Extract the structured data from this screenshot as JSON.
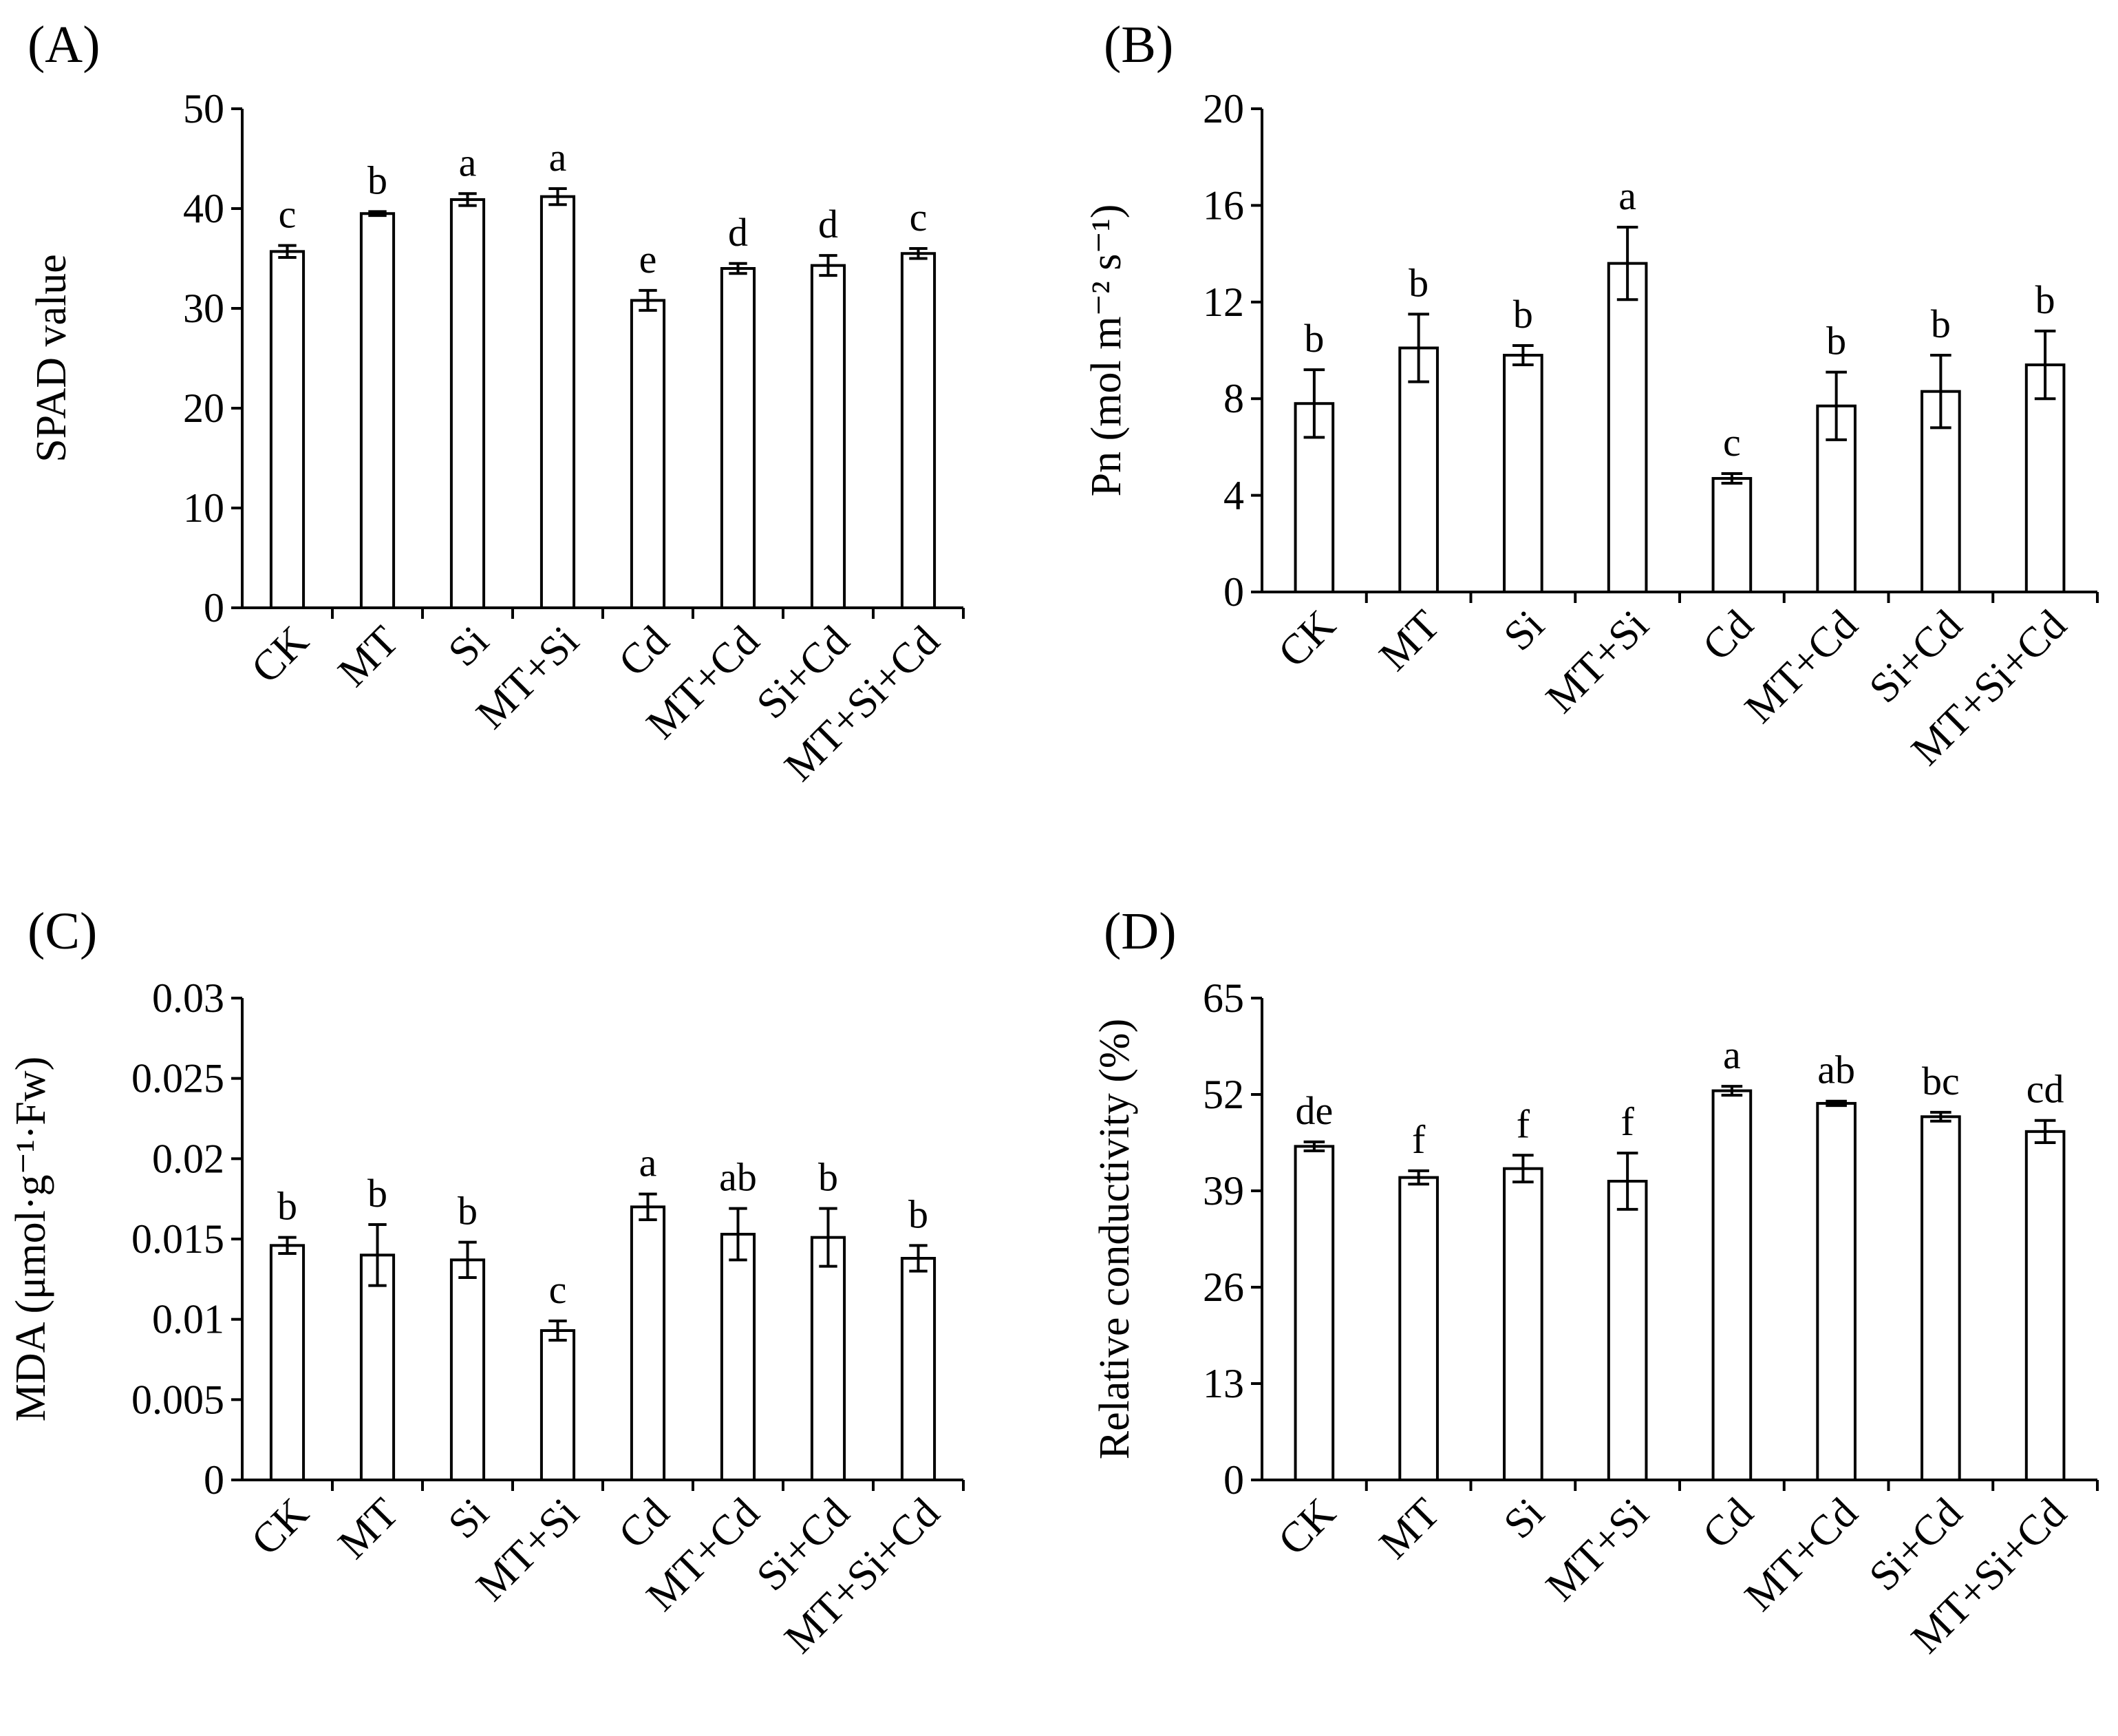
{
  "chart_data": [
    {
      "panel": "(A)",
      "type": "bar",
      "categories": [
        "CK",
        "MT",
        "Si",
        "MT+Si",
        "Cd",
        "MT+Cd",
        "Si+Cd",
        "MT+Si+Cd"
      ],
      "values": [
        35.7,
        39.5,
        40.9,
        41.2,
        30.8,
        34.0,
        34.3,
        35.5
      ],
      "errors": [
        0.6,
        0.2,
        0.6,
        0.8,
        1.0,
        0.5,
        1.0,
        0.5
      ],
      "significance": [
        "c",
        "b",
        "a",
        "a",
        "e",
        "d",
        "d",
        "c"
      ],
      "ylabel": "SPAD value",
      "ylim": [
        0,
        50
      ],
      "yticks": [
        0,
        10,
        20,
        30,
        40,
        50
      ],
      "ytick_labels": [
        "0",
        "10",
        "20",
        "30",
        "40",
        "50"
      ]
    },
    {
      "panel": "(B)",
      "type": "bar",
      "categories": [
        "CK",
        "MT",
        "Si",
        "MT+Si",
        "Cd",
        "MT+Cd",
        "Si+Cd",
        "MT+Si+Cd"
      ],
      "values": [
        7.8,
        10.1,
        9.8,
        13.6,
        4.7,
        7.7,
        8.3,
        9.4
      ],
      "errors": [
        1.4,
        1.4,
        0.4,
        1.5,
        0.2,
        1.4,
        1.5,
        1.4
      ],
      "significance": [
        "b",
        "b",
        "b",
        "a",
        "c",
        "b",
        "b",
        "b"
      ],
      "ylabel": "Pn (mol m⁻² s⁻¹)",
      "ylim": [
        0,
        20
      ],
      "yticks": [
        0,
        4,
        8,
        12,
        16,
        20
      ],
      "ytick_labels": [
        "0",
        "4",
        "8",
        "12",
        "16",
        "20"
      ]
    },
    {
      "panel": "(C)",
      "type": "bar",
      "categories": [
        "CK",
        "MT",
        "Si",
        "MT+Si",
        "Cd",
        "MT+Cd",
        "Si+Cd",
        "MT+Si+Cd"
      ],
      "values": [
        0.0146,
        0.014,
        0.0137,
        0.0093,
        0.017,
        0.0153,
        0.0151,
        0.0138
      ],
      "errors": [
        0.0005,
        0.0019,
        0.0011,
        0.0006,
        0.0008,
        0.0016,
        0.0018,
        0.0008
      ],
      "significance": [
        "b",
        "b",
        "b",
        "c",
        "a",
        "ab",
        "b",
        "b"
      ],
      "ylabel": "MDA (μmol·g⁻¹·Fw)",
      "ylim": [
        0,
        0.03
      ],
      "yticks": [
        0,
        0.005,
        0.01,
        0.015,
        0.02,
        0.025,
        0.03
      ],
      "ytick_labels": [
        "0",
        "0.005",
        "0.01",
        "0.015",
        "0.02",
        "0.025",
        "0.03"
      ]
    },
    {
      "panel": "(D)",
      "type": "bar",
      "categories": [
        "CK",
        "MT",
        "Si",
        "MT+Si",
        "Cd",
        "MT+Cd",
        "Si+Cd",
        "MT+Si+Cd"
      ],
      "values": [
        45.0,
        40.8,
        42.0,
        40.3,
        52.5,
        50.8,
        49.0,
        47.0
      ],
      "errors": [
        0.6,
        0.9,
        1.8,
        3.8,
        0.6,
        0.3,
        0.6,
        1.5
      ],
      "significance": [
        "de",
        "f",
        "f",
        "f",
        "a",
        "ab",
        "bc",
        "cd"
      ],
      "ylabel": "Relative conductivity (%)",
      "ylim": [
        0,
        65
      ],
      "yticks": [
        0,
        13,
        26,
        39,
        52,
        65
      ],
      "ytick_labels": [
        "0",
        "13",
        "26",
        "39",
        "52",
        "65"
      ]
    }
  ]
}
